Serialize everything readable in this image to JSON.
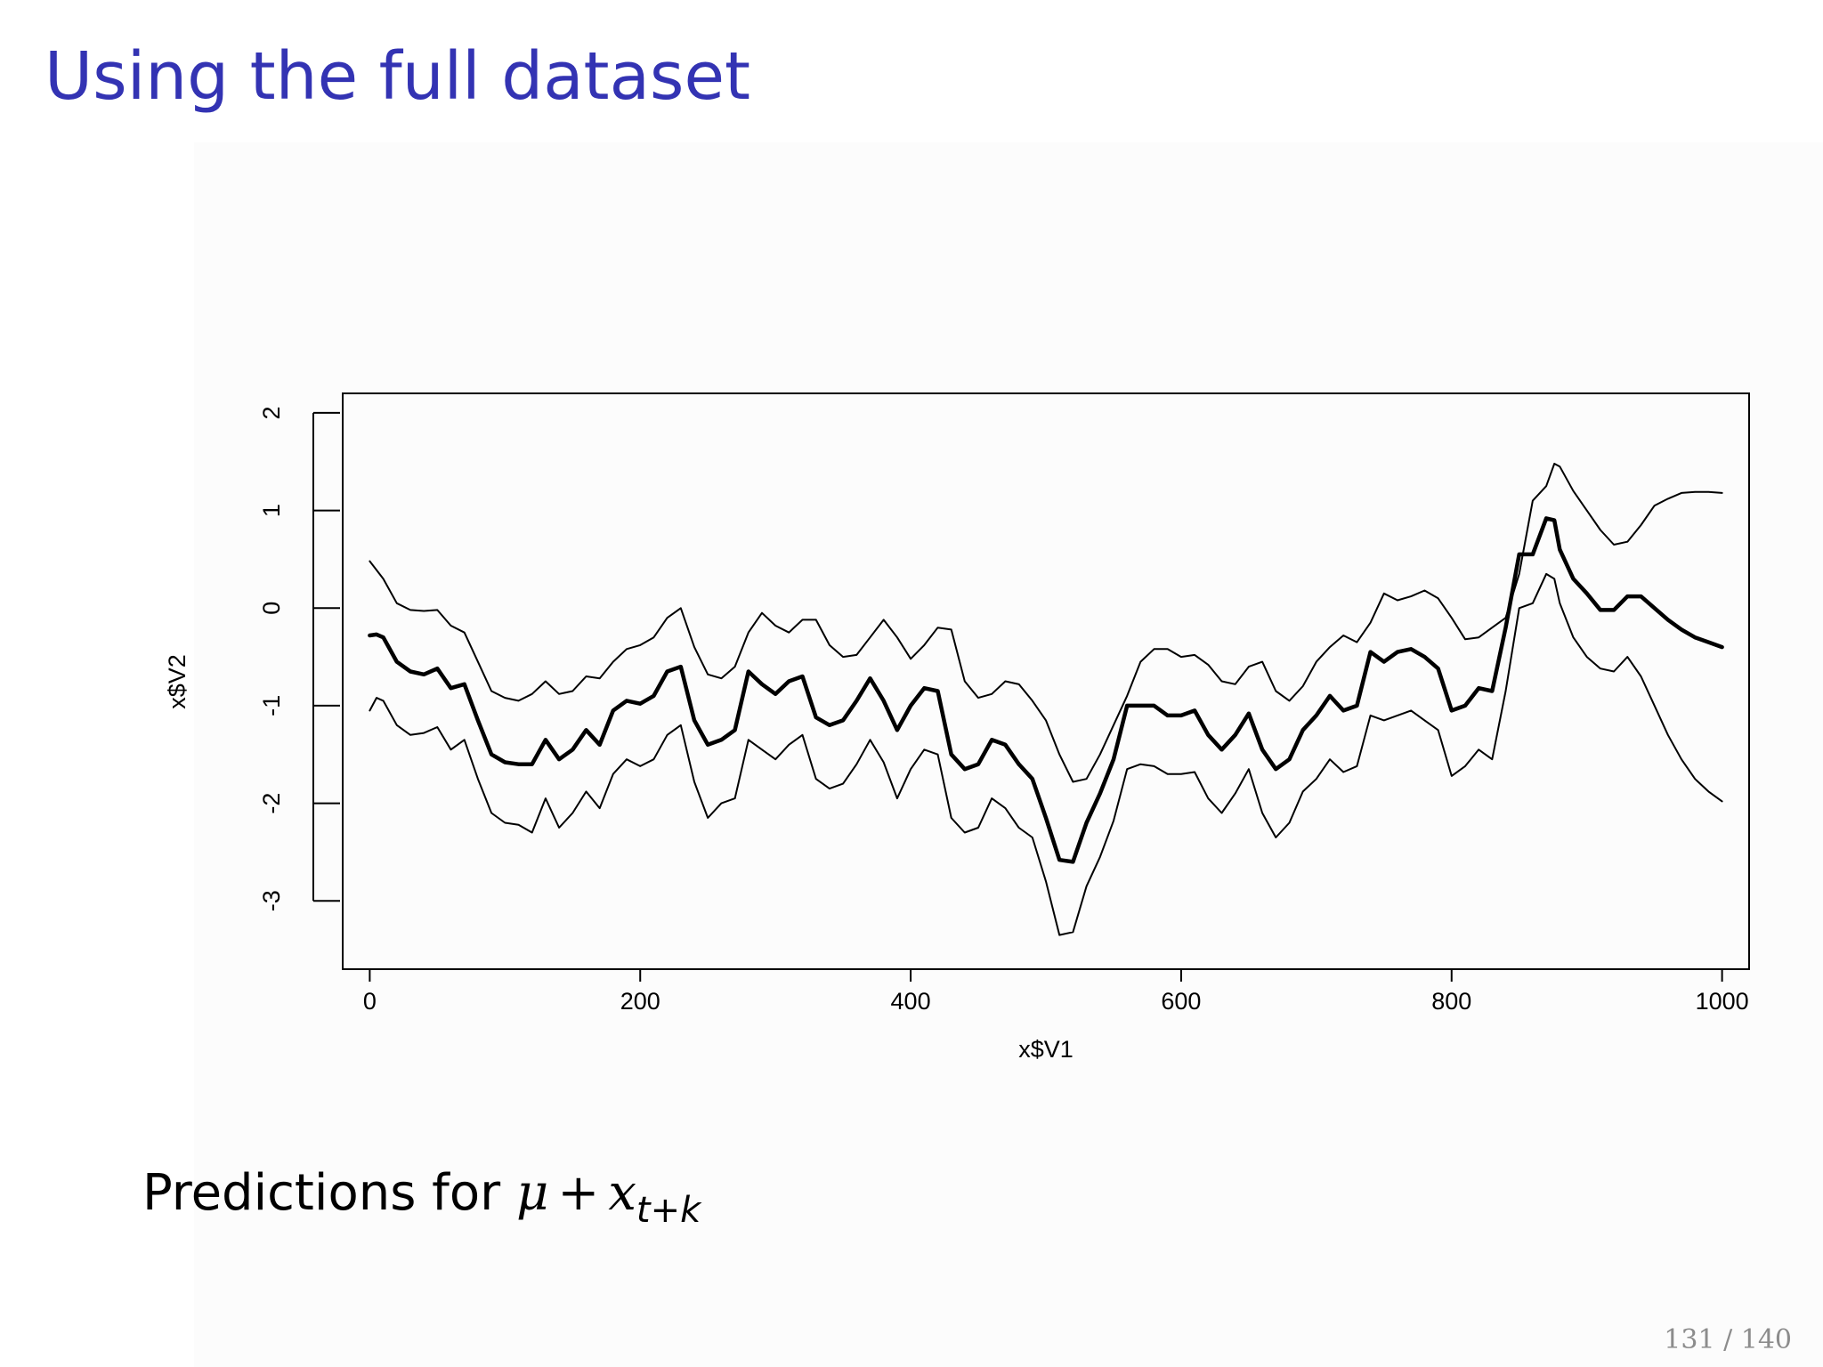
{
  "slide": {
    "title": "Using the full dataset",
    "page_number": "131 / 140",
    "title_color": "#3333b3"
  },
  "caption": {
    "prefix": "Predictions for",
    "mu": "μ",
    "plus": "+",
    "x": "x",
    "subscript": "t+k"
  },
  "chart_data": {
    "type": "line",
    "title": "",
    "xlabel": "x$V1",
    "ylabel": "x$V2",
    "xlim": [
      -20,
      1020
    ],
    "ylim": [
      -3.7,
      2.2
    ],
    "x_ticks": [
      0,
      200,
      400,
      600,
      800,
      1000
    ],
    "y_ticks": [
      -3,
      -2,
      -1,
      0,
      1,
      2
    ],
    "grid": false,
    "legend": "none",
    "series": [
      {
        "role": "upper",
        "line_width": "thin",
        "x": [
          0,
          10,
          20,
          30,
          40,
          50,
          60,
          70,
          80,
          90,
          100,
          110,
          120,
          130,
          140,
          150,
          160,
          170,
          180,
          190,
          200,
          210,
          220,
          230,
          240,
          250,
          260,
          270,
          280,
          290,
          300,
          310,
          320,
          330,
          340,
          350,
          360,
          370,
          380,
          390,
          400,
          410,
          420,
          430,
          440,
          450,
          460,
          470,
          480,
          490,
          500,
          510,
          520,
          530,
          540,
          550,
          560,
          570,
          580,
          590,
          600,
          610,
          620,
          630,
          640,
          650,
          660,
          670,
          680,
          690,
          700,
          710,
          720,
          730,
          740,
          750,
          760,
          770,
          780,
          790,
          800,
          810,
          820,
          830,
          840,
          850,
          860,
          870,
          876,
          880,
          890,
          900,
          910,
          920,
          930,
          940,
          950,
          960,
          970,
          980,
          990,
          1000
        ],
        "y": [
          0.48,
          0.3,
          0.05,
          -0.02,
          -0.03,
          -0.02,
          -0.18,
          -0.25,
          -0.55,
          -0.85,
          -0.92,
          -0.95,
          -0.88,
          -0.75,
          -0.88,
          -0.85,
          -0.7,
          -0.72,
          -0.55,
          -0.42,
          -0.38,
          -0.3,
          -0.1,
          0.0,
          -0.4,
          -0.68,
          -0.72,
          -0.6,
          -0.25,
          -0.05,
          -0.18,
          -0.25,
          -0.12,
          -0.12,
          -0.38,
          -0.5,
          -0.48,
          -0.3,
          -0.12,
          -0.3,
          -0.52,
          -0.38,
          -0.2,
          -0.22,
          -0.75,
          -0.92,
          -0.88,
          -0.75,
          -0.78,
          -0.95,
          -1.15,
          -1.5,
          -1.78,
          -1.75,
          -1.5,
          -1.2,
          -0.9,
          -0.55,
          -0.42,
          -0.42,
          -0.5,
          -0.48,
          -0.58,
          -0.75,
          -0.78,
          -0.6,
          -0.55,
          -0.85,
          -0.95,
          -0.8,
          -0.55,
          -0.4,
          -0.28,
          -0.35,
          -0.15,
          0.15,
          0.08,
          0.12,
          0.18,
          0.1,
          -0.1,
          -0.32,
          -0.3,
          -0.2,
          -0.1,
          0.35,
          1.1,
          1.25,
          1.48,
          1.45,
          1.2,
          1.0,
          0.8,
          0.65,
          0.68,
          0.85,
          1.05,
          1.12,
          1.18,
          1.19,
          1.19,
          1.18
        ]
      },
      {
        "role": "prediction",
        "line_width": "thick",
        "x": [
          0,
          5,
          10,
          20,
          30,
          40,
          50,
          60,
          70,
          80,
          90,
          100,
          110,
          120,
          130,
          140,
          150,
          160,
          170,
          180,
          190,
          200,
          210,
          220,
          230,
          240,
          250,
          260,
          270,
          280,
          290,
          300,
          310,
          320,
          330,
          340,
          350,
          360,
          370,
          380,
          390,
          400,
          410,
          420,
          430,
          440,
          450,
          460,
          470,
          480,
          490,
          500,
          510,
          520,
          530,
          540,
          550,
          560,
          570,
          580,
          590,
          600,
          610,
          620,
          630,
          640,
          650,
          660,
          670,
          680,
          690,
          700,
          710,
          720,
          730,
          740,
          750,
          760,
          770,
          780,
          790,
          800,
          810,
          820,
          830,
          840,
          850,
          860,
          870,
          876,
          880,
          890,
          900,
          910,
          920,
          930,
          940,
          950,
          960,
          970,
          980,
          990,
          1000
        ],
        "y": [
          -0.28,
          -0.27,
          -0.3,
          -0.55,
          -0.65,
          -0.68,
          -0.62,
          -0.82,
          -0.78,
          -1.15,
          -1.5,
          -1.58,
          -1.6,
          -1.6,
          -1.35,
          -1.55,
          -1.45,
          -1.25,
          -1.4,
          -1.05,
          -0.95,
          -0.98,
          -0.9,
          -0.65,
          -0.6,
          -1.15,
          -1.4,
          -1.35,
          -1.25,
          -0.65,
          -0.78,
          -0.88,
          -0.75,
          -0.7,
          -1.12,
          -1.2,
          -1.15,
          -0.95,
          -0.72,
          -0.95,
          -1.25,
          -1.0,
          -0.82,
          -0.85,
          -1.5,
          -1.65,
          -1.6,
          -1.35,
          -1.4,
          -1.6,
          -1.75,
          -2.15,
          -2.58,
          -2.6,
          -2.2,
          -1.9,
          -1.55,
          -1.0,
          -1.0,
          -1.0,
          -1.1,
          -1.1,
          -1.05,
          -1.3,
          -1.45,
          -1.3,
          -1.08,
          -1.45,
          -1.65,
          -1.55,
          -1.25,
          -1.1,
          -0.9,
          -1.05,
          -1.0,
          -0.45,
          -0.55,
          -0.45,
          -0.42,
          -0.5,
          -0.62,
          -1.05,
          -1.0,
          -0.82,
          -0.85,
          -0.2,
          0.55,
          0.55,
          0.92,
          0.9,
          0.6,
          0.3,
          0.15,
          -0.02,
          -0.02,
          0.12,
          0.12,
          0.0,
          -0.12,
          -0.22,
          -0.3,
          -0.35,
          -0.4
        ]
      },
      {
        "role": "lower",
        "line_width": "thin",
        "x": [
          0,
          5,
          10,
          20,
          30,
          40,
          50,
          60,
          70,
          80,
          90,
          100,
          110,
          120,
          130,
          140,
          150,
          160,
          170,
          180,
          190,
          200,
          210,
          220,
          230,
          240,
          250,
          260,
          270,
          280,
          290,
          300,
          310,
          320,
          330,
          340,
          350,
          360,
          370,
          380,
          390,
          400,
          410,
          420,
          430,
          440,
          450,
          460,
          470,
          480,
          490,
          500,
          510,
          520,
          530,
          540,
          550,
          560,
          570,
          580,
          590,
          600,
          610,
          620,
          630,
          640,
          650,
          660,
          670,
          680,
          690,
          700,
          710,
          720,
          730,
          740,
          750,
          760,
          770,
          780,
          790,
          800,
          810,
          820,
          830,
          840,
          850,
          860,
          870,
          876,
          880,
          890,
          900,
          910,
          920,
          930,
          940,
          950,
          960,
          970,
          980,
          990,
          1000
        ],
        "y": [
          -1.05,
          -0.92,
          -0.95,
          -1.2,
          -1.3,
          -1.28,
          -1.22,
          -1.45,
          -1.35,
          -1.75,
          -2.1,
          -2.2,
          -2.22,
          -2.3,
          -1.95,
          -2.25,
          -2.1,
          -1.88,
          -2.05,
          -1.7,
          -1.55,
          -1.62,
          -1.55,
          -1.3,
          -1.2,
          -1.78,
          -2.15,
          -2.0,
          -1.95,
          -1.35,
          -1.45,
          -1.55,
          -1.4,
          -1.3,
          -1.75,
          -1.85,
          -1.8,
          -1.6,
          -1.35,
          -1.58,
          -1.95,
          -1.65,
          -1.45,
          -1.5,
          -2.15,
          -2.3,
          -2.25,
          -1.95,
          -2.05,
          -2.25,
          -2.35,
          -2.8,
          -3.35,
          -3.32,
          -2.85,
          -2.55,
          -2.18,
          -1.65,
          -1.6,
          -1.62,
          -1.7,
          -1.7,
          -1.68,
          -1.95,
          -2.1,
          -1.9,
          -1.65,
          -2.1,
          -2.35,
          -2.2,
          -1.88,
          -1.75,
          -1.55,
          -1.68,
          -1.62,
          -1.1,
          -1.15,
          -1.1,
          -1.05,
          -1.15,
          -1.25,
          -1.72,
          -1.62,
          -1.45,
          -1.55,
          -0.85,
          0.0,
          0.05,
          0.35,
          0.3,
          0.05,
          -0.3,
          -0.5,
          -0.62,
          -0.65,
          -0.5,
          -0.7,
          -1.0,
          -1.3,
          -1.55,
          -1.75,
          -1.88,
          -1.98
        ]
      }
    ]
  }
}
